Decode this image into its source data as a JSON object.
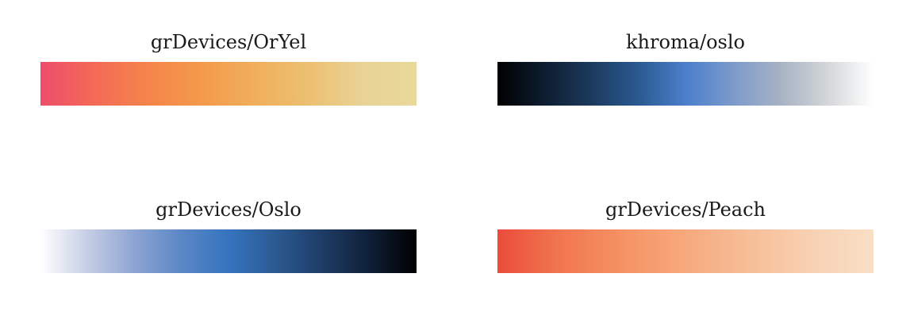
{
  "palettes": [
    {
      "title": "grDevices/OrYel",
      "colors": [
        "#EE4D6A",
        "#F36A57",
        "#F4844A",
        "#F39A4B",
        "#F0AE5B",
        "#ECC072",
        "#E9D296",
        "#E8D99A"
      ]
    },
    {
      "title": "khroma/oslo",
      "colors": [
        "#000000",
        "#0D1D30",
        "#1C3A5E",
        "#2A5A92",
        "#4B7FCB",
        "#7C9ACB",
        "#A6B2C4",
        "#D3D5D8",
        "#FFFFFF"
      ]
    },
    {
      "title": "grDevices/Oslo",
      "colors": [
        "#FFFFFF",
        "#C5CEE5",
        "#8DA4D3",
        "#5A87C6",
        "#3574BE",
        "#2B5A92",
        "#1E3C66",
        "#0F1F37",
        "#000000"
      ]
    },
    {
      "title": "grDevices/Peach",
      "colors": [
        "#EA4C3B",
        "#F17650",
        "#F59264",
        "#F6A97D",
        "#F7BE98",
        "#F8D1B3",
        "#F8DFC6"
      ]
    }
  ]
}
